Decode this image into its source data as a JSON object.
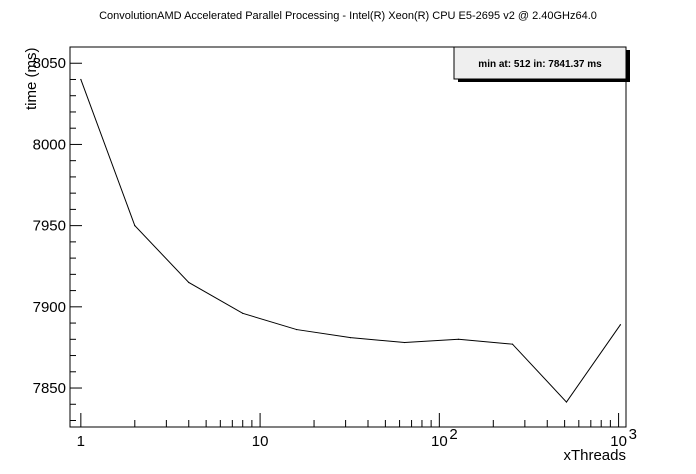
{
  "chart_data": {
    "type": "line",
    "title": "ConvolutionAMD Accelerated Parallel Processing - Intel(R) Xeon(R) CPU E5-2695 v2 @ 2.40GHz64.0",
    "xlabel": "xThreads",
    "ylabel": "time (ms)",
    "x_scale": "log",
    "xlim": [
      0.87,
      1100
    ],
    "ylim": [
      7826,
      8060
    ],
    "x_tick_labels": [
      {
        "value": 1,
        "base": "1",
        "exp": ""
      },
      {
        "value": 10,
        "base": "10",
        "exp": ""
      },
      {
        "value": 100,
        "base": "10",
        "exp": "2"
      },
      {
        "value": 1000,
        "base": "10",
        "exp": "3"
      }
    ],
    "y_ticks": [
      7850,
      7900,
      7950,
      8000,
      8050
    ],
    "x": [
      1,
      2,
      4,
      8,
      16,
      32,
      64,
      128,
      256,
      512,
      1024
    ],
    "series": [
      {
        "values": [
          8040,
          7950,
          7915,
          7896,
          7886,
          7881,
          7878,
          7880,
          7877,
          7841.37,
          7889
        ]
      }
    ],
    "stats_box": {
      "text": "min at: 512 in: 7841.37 ms",
      "position": "top-right"
    },
    "grid": false,
    "line_color": "#000000"
  }
}
